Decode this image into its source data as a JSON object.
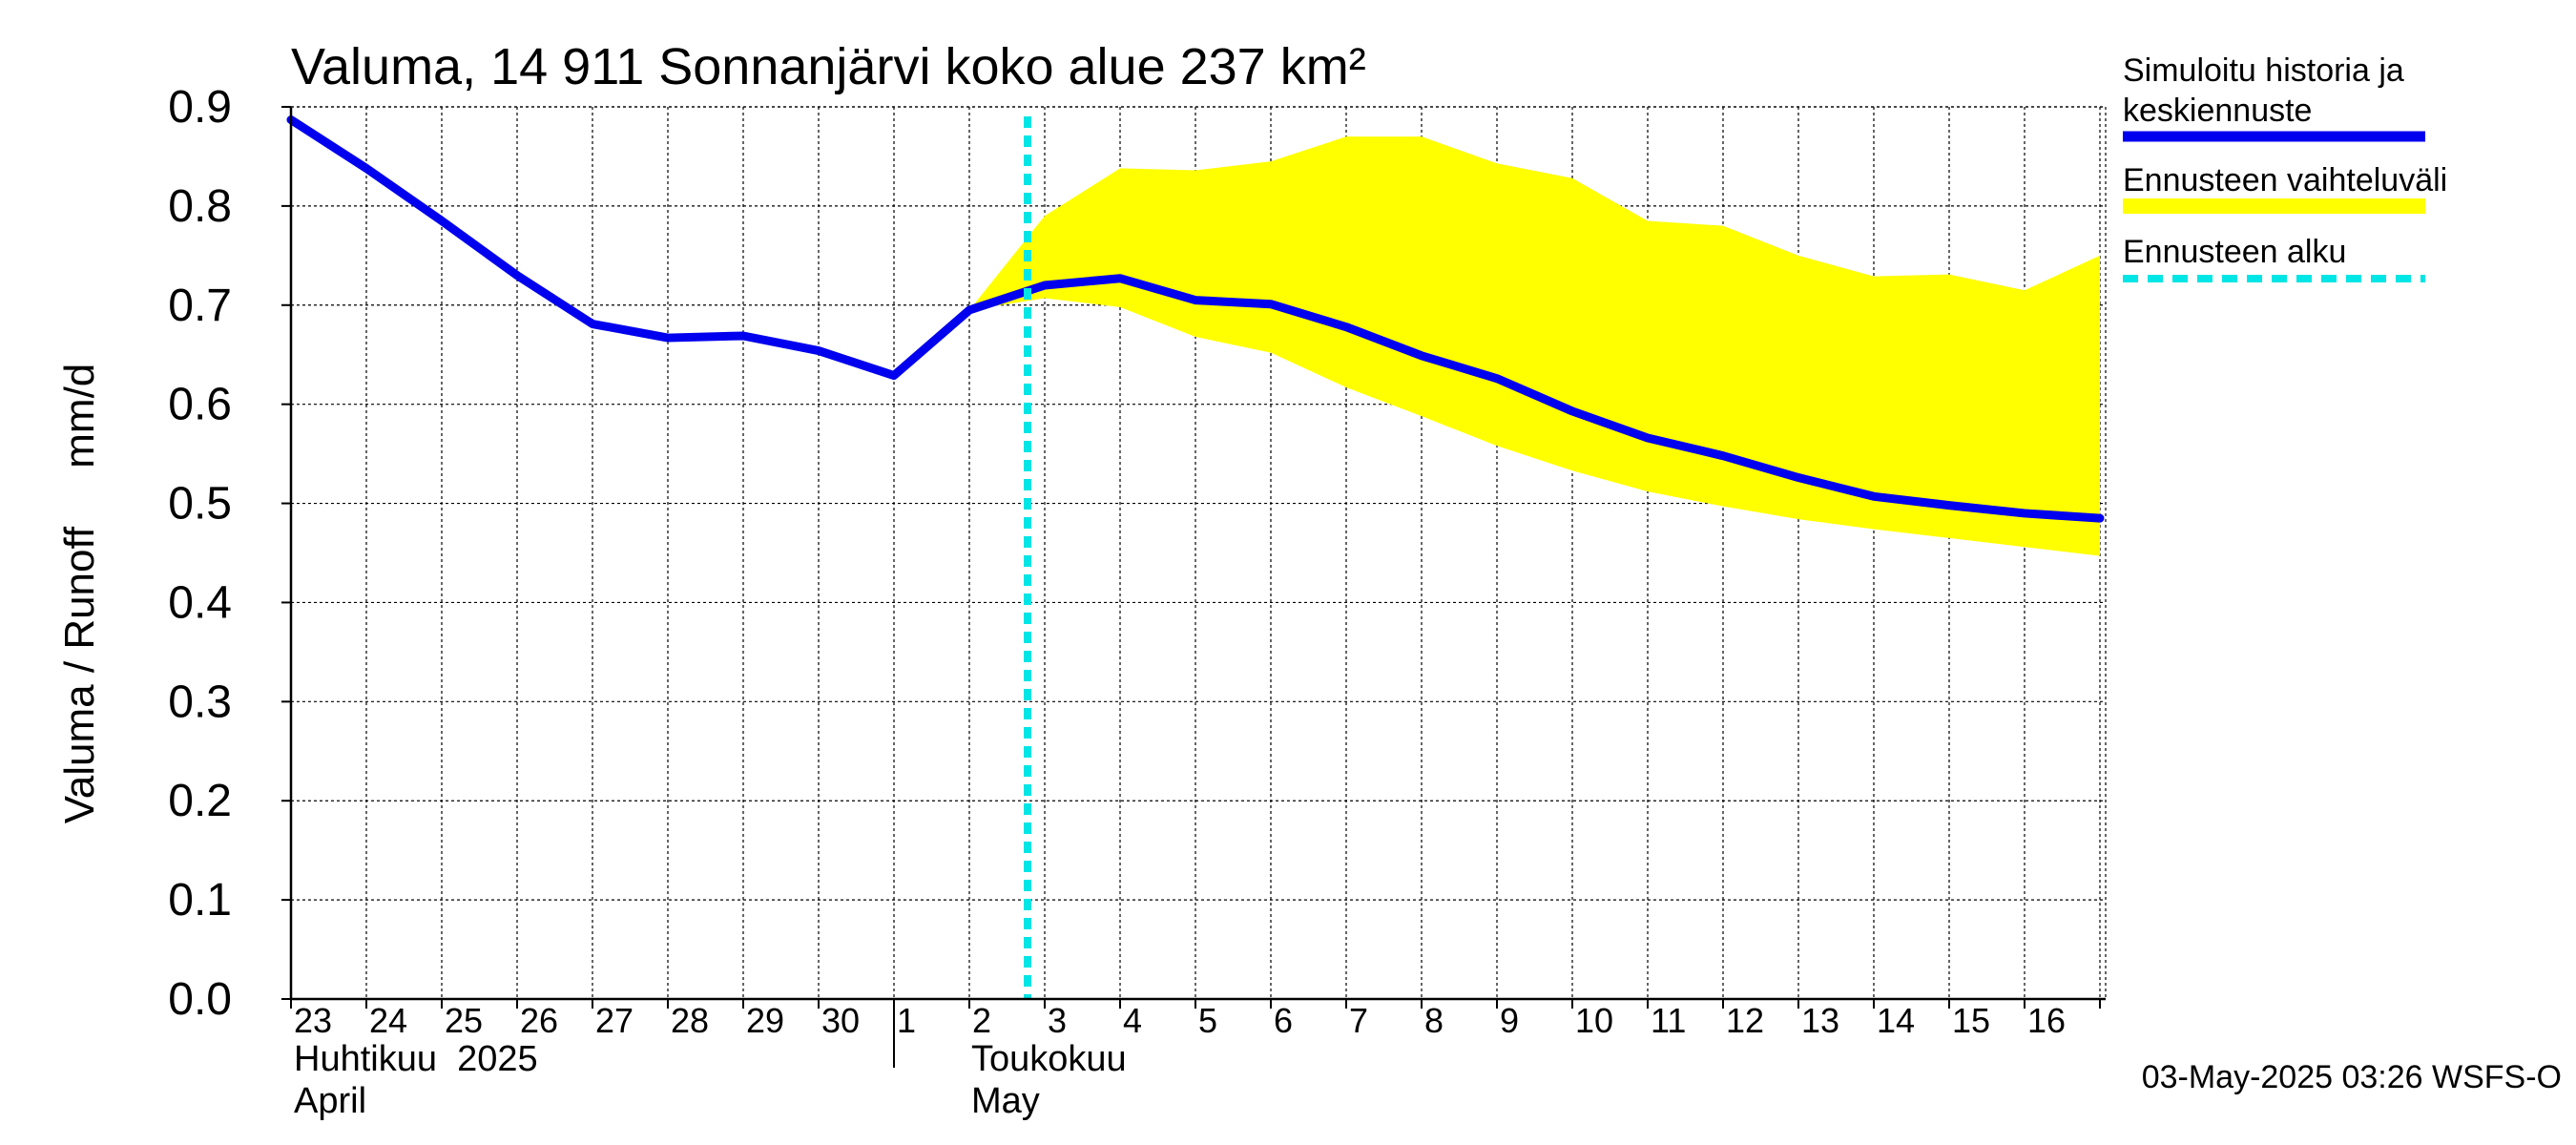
{
  "chart_data": {
    "type": "line",
    "title": "Valuma, 14 911 Sonnanjärvi koko alue 237 km²",
    "ylabel": "Valuma / Runoff     mm/d",
    "ylim": [
      0,
      0.9
    ],
    "yticks": [
      "0.0",
      "0.1",
      "0.2",
      "0.3",
      "0.4",
      "0.5",
      "0.6",
      "0.7",
      "0.8",
      "0.9"
    ],
    "x_tick_labels": [
      "23",
      "24",
      "25",
      "26",
      "27",
      "28",
      "29",
      "30",
      "1",
      "2",
      "3",
      "4",
      "5",
      "6",
      "7",
      "8",
      "9",
      "10",
      "11",
      "12",
      "13",
      "14",
      "15",
      "16"
    ],
    "x_dates": [
      "2025-04-23",
      "2025-04-24",
      "2025-04-25",
      "2025-04-26",
      "2025-04-27",
      "2025-04-28",
      "2025-04-29",
      "2025-04-30",
      "2025-05-01",
      "2025-05-02",
      "2025-05-03",
      "2025-05-04",
      "2025-05-05",
      "2025-05-06",
      "2025-05-07",
      "2025-05-08",
      "2025-05-09",
      "2025-05-10",
      "2025-05-11",
      "2025-05-12",
      "2025-05-13",
      "2025-05-14",
      "2025-05-15",
      "2025-05-16",
      "2025-05-17"
    ],
    "month_labels": [
      {
        "line1": "Huhtikuu  2025",
        "line2": "April"
      },
      {
        "line1": "Toukokuu",
        "line2": "May"
      }
    ],
    "grid": true,
    "forecast_start": "2025-05-03",
    "series": [
      {
        "name": "Simuloitu historia ja keskiennuste",
        "color": "#0000ee",
        "values": [
          0.887,
          0.838,
          0.785,
          0.73,
          0.681,
          0.667,
          0.669,
          0.654,
          0.629,
          0.695,
          0.72,
          0.727,
          0.705,
          0.701,
          0.678,
          0.649,
          0.626,
          0.593,
          0.566,
          0.548,
          0.526,
          0.507,
          0.498,
          0.49,
          0.485
        ]
      }
    ],
    "band": {
      "name": "Ennusteen vaihteluväli",
      "color": "#ffff00",
      "x_start_index": 9,
      "upper": [
        0.695,
        0.79,
        0.838,
        0.836,
        0.845,
        0.87,
        0.87,
        0.843,
        0.828,
        0.785,
        0.78,
        0.75,
        0.729,
        0.731,
        0.715,
        0.75
      ],
      "lower": [
        0.695,
        0.707,
        0.698,
        0.668,
        0.652,
        0.617,
        0.588,
        0.558,
        0.533,
        0.512,
        0.497,
        0.484,
        0.474,
        0.465,
        0.456,
        0.447
      ]
    },
    "legend": [
      {
        "label_line1": "Simuloitu historia ja",
        "label_line2": "keskiennuste",
        "color": "#0000ee",
        "style": "solid"
      },
      {
        "label_line1": "Ennusteen vaihteluväli",
        "label_line2": "",
        "color": "#ffff00",
        "style": "band"
      },
      {
        "label_line1": "Ennusteen alku",
        "label_line2": "",
        "color": "#00e5e5",
        "style": "dashed"
      }
    ],
    "legend_position": "right",
    "footer": "03-May-2025 03:26 WSFS-O"
  }
}
